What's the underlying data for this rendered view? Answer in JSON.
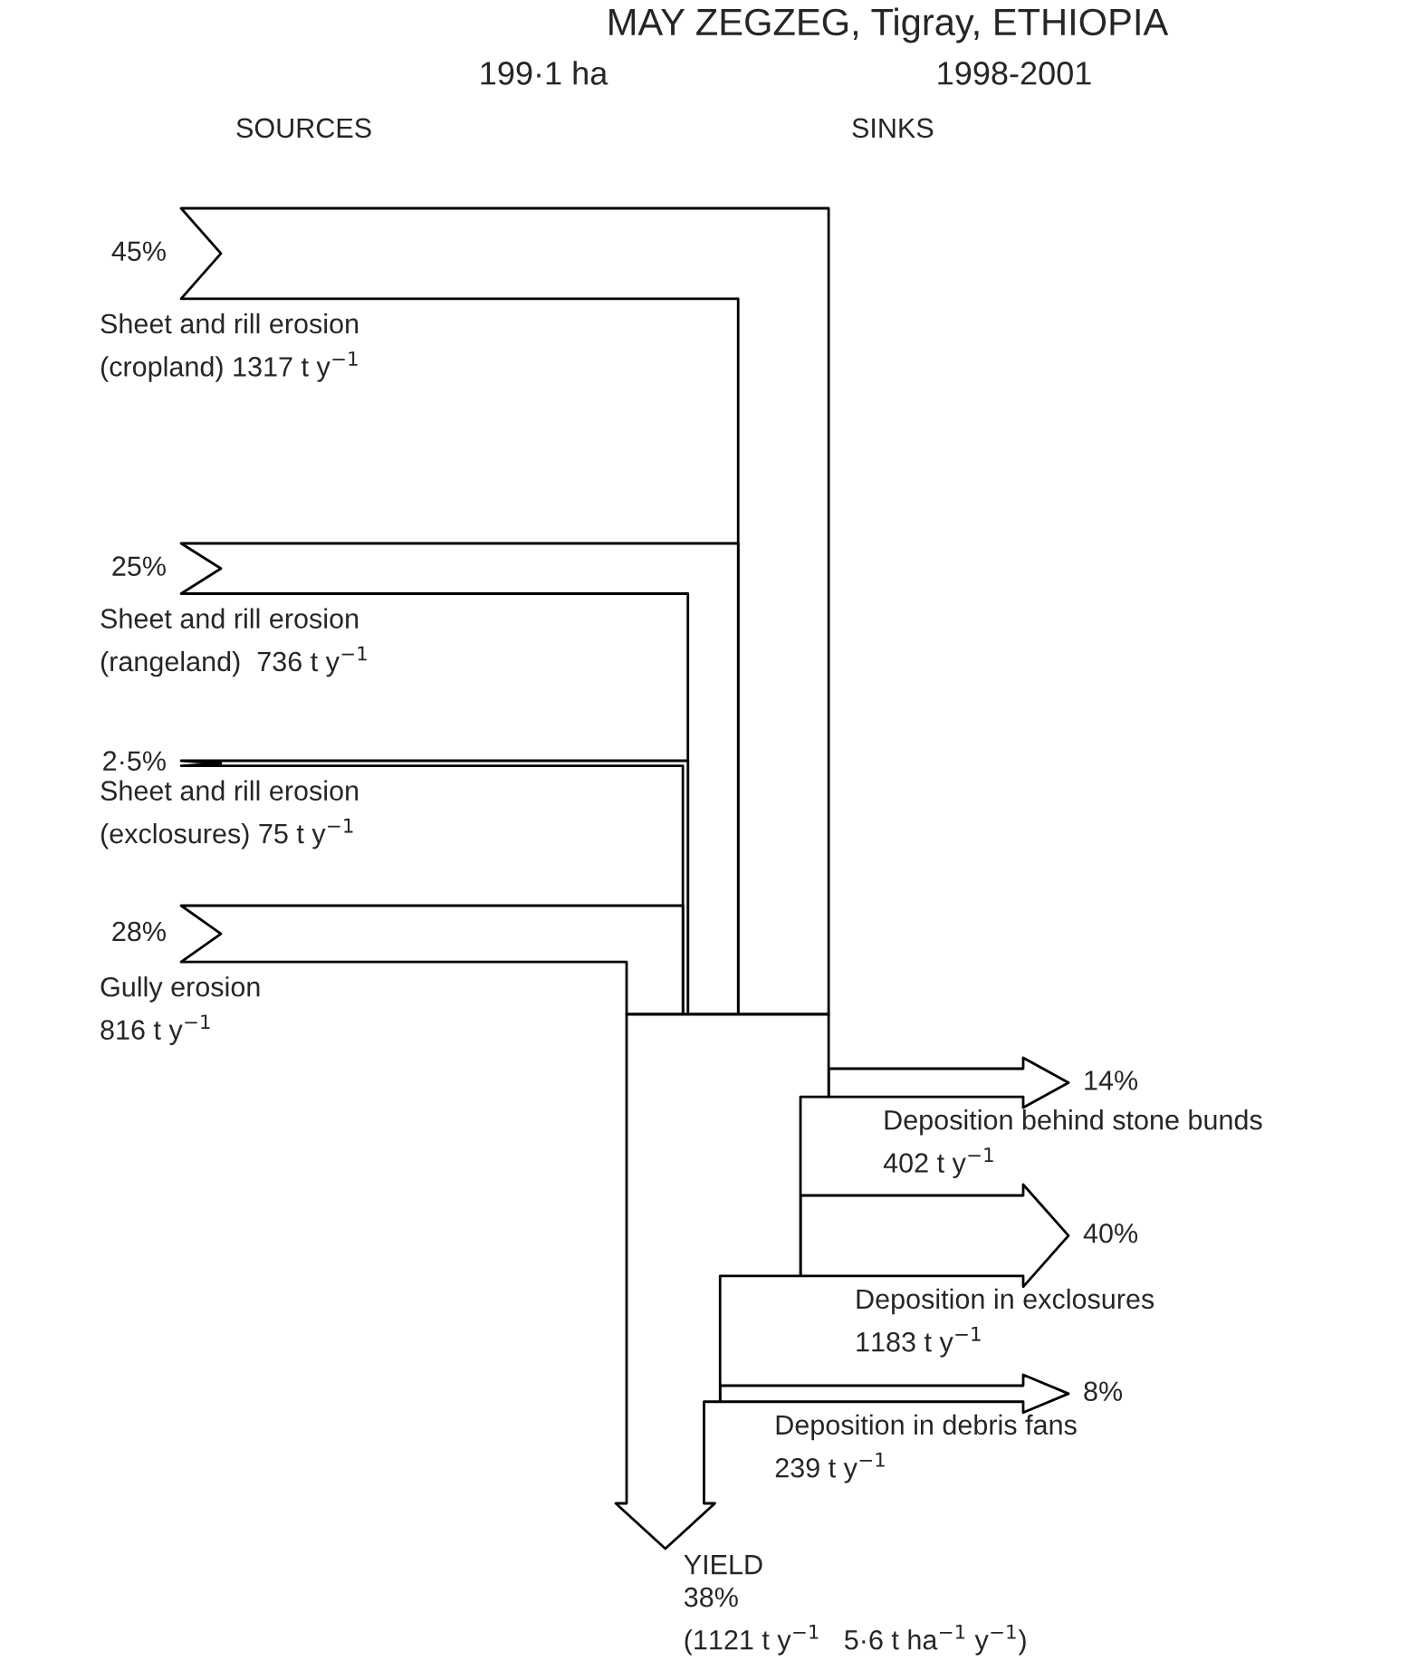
{
  "chart_data": {
    "type": "other",
    "title": "MAY ZEGZEG, Tigray, ETHIOPIA",
    "subtitle": "199·1 ha",
    "annotations": [
      "1998-2001",
      "(1121 t y$^{−1}$   5·6 t ha$^{−1}$ y$^{−1}$)"
    ],
    "categories": [
      "Sheet and rill erosion\n(cropland) 1317 t y$^{−1}$",
      "Sheet and rill erosion\n(rangeland)  736 t y$^{−1}$",
      "Sheet and rill erosion\n(exclosures) 75 t y$^{−1}$",
      "Gully erosion\n816 t y$^{−1}$",
      "Deposition behind stone bunds\n402 t y$^{−1}$",
      "Deposition in exclosures\n1183 t y$^{−1}$",
      "Deposition in debris fans\n239 t y$^{−1}$",
      "YIELD"
    ],
    "series": [
      {
        "name": "SOURCES",
        "values": [
          45,
          25,
          2.5,
          28,
          null,
          null,
          null,
          null
        ],
        "value_labels": [
          "45%",
          "25%",
          "2·5%",
          "28%",
          null,
          null,
          null,
          null
        ]
      },
      {
        "name": "SINKS",
        "values": [
          null,
          null,
          null,
          null,
          14,
          40,
          8,
          38
        ],
        "value_labels": [
          null,
          null,
          null,
          null,
          "14%",
          "40%",
          "8%",
          "38%"
        ]
      }
    ]
  }
}
